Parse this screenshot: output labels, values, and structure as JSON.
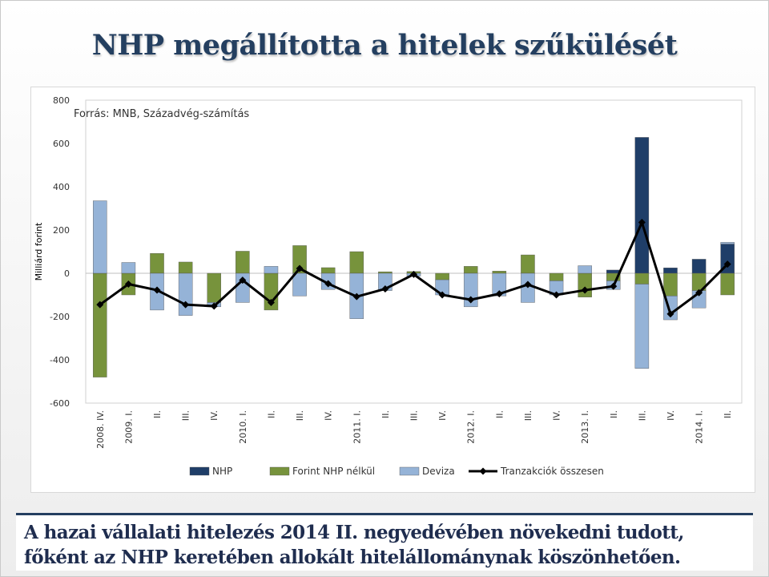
{
  "slide": {
    "title": "NHP megállította a hitelek szűkülését",
    "caption": "A hazai vállalati hitelezés 2014 II. negyedévében növekedni tudott, főként az NHP keretében allokált hitelállománynak köszönhetően."
  },
  "chart_data": {
    "type": "bar",
    "stacked": true,
    "title": "",
    "source_note": "Forrás: MNB, Századvég-számítás",
    "xlabel": "",
    "ylabel": "Milliárd forint",
    "ylim": [
      -600,
      800
    ],
    "yticks": [
      -600,
      -400,
      -200,
      0,
      200,
      400,
      600,
      800
    ],
    "grid": false,
    "legend_position": "bottom",
    "categories": [
      "2008. IV.",
      "2009. I.",
      "II.",
      "III.",
      "IV.",
      "2010. I.",
      "II.",
      "III.",
      "IV.",
      "2011. I.",
      "II.",
      "III.",
      "IV.",
      "2012. I.",
      "II.",
      "III.",
      "IV.",
      "2013. I.",
      "II.",
      "III.",
      "IV.",
      "2014. I.",
      "II."
    ],
    "series": [
      {
        "name": "NHP",
        "kind": "bar",
        "color": "#1f3e68",
        "values": [
          0,
          0,
          0,
          0,
          0,
          0,
          0,
          0,
          0,
          0,
          0,
          0,
          0,
          0,
          0,
          0,
          0,
          0,
          15,
          628,
          25,
          65,
          135
        ]
      },
      {
        "name": "Forint NHP nélkül",
        "kind": "bar",
        "color": "#77933c",
        "values": [
          -480,
          -100,
          92,
          52,
          -135,
          102,
          -170,
          128,
          26,
          100,
          7,
          8,
          -30,
          32,
          10,
          85,
          -35,
          -110,
          -35,
          -50,
          -105,
          -80,
          -100
        ]
      },
      {
        "name": "Deviza",
        "kind": "bar",
        "color": "#95b3d7",
        "values": [
          335,
          50,
          -170,
          -195,
          -20,
          -135,
          32,
          -105,
          -75,
          -210,
          -80,
          -13,
          -70,
          -155,
          -105,
          -135,
          -65,
          35,
          -40,
          -390,
          -110,
          -80,
          8
        ]
      },
      {
        "name": "Tranzakciók összesen",
        "kind": "line",
        "color": "#000000",
        "values": [
          -145,
          -50,
          -78,
          -145,
          -152,
          -32,
          -135,
          22,
          -48,
          -108,
          -72,
          -5,
          -100,
          -122,
          -95,
          -52,
          -100,
          -78,
          -60,
          235,
          -188,
          -90,
          42
        ]
      }
    ]
  }
}
